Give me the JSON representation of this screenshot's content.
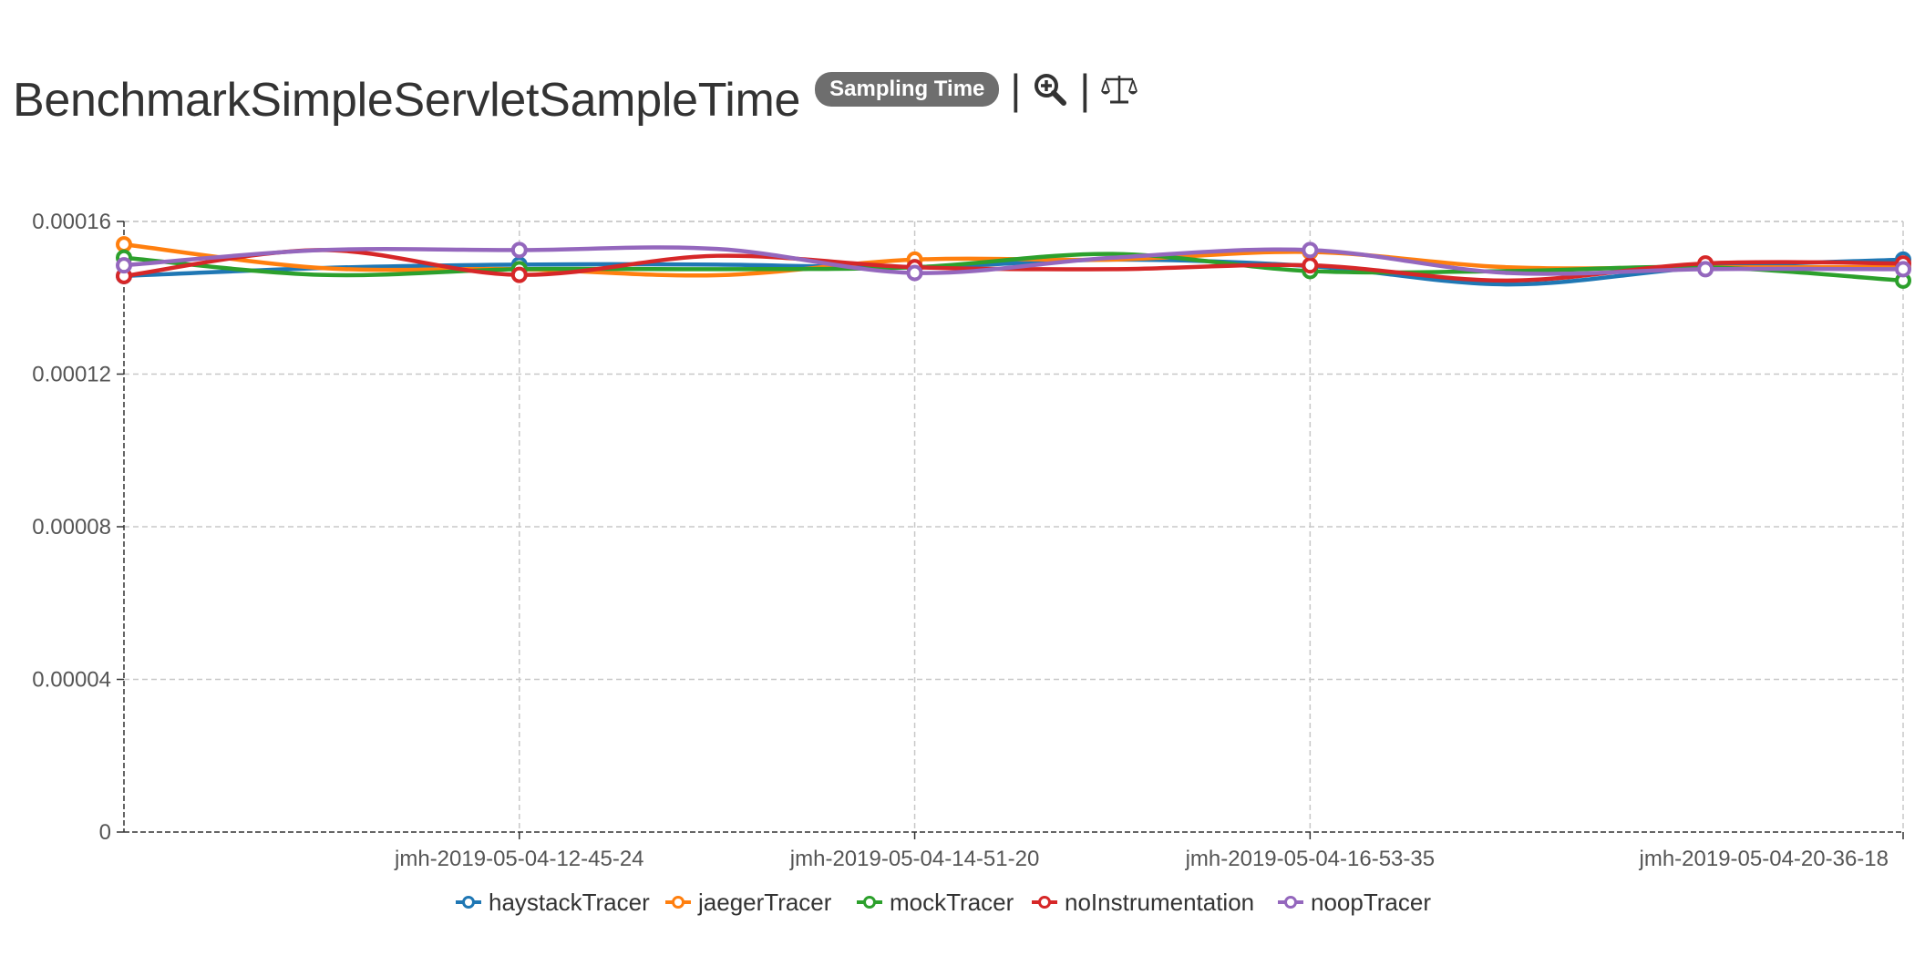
{
  "header": {
    "title": "BenchmarkSimpleServletSampleTime",
    "badge": "Sampling Time",
    "separator": "|"
  },
  "icons": {
    "zoom": "zoom-in-icon",
    "scale": "balance-scale-icon"
  },
  "colors": {
    "haystackTracer": "#1f77b4",
    "jaegerTracer": "#ff7f0e",
    "mockTracer": "#2ca02c",
    "noInstrumentation": "#d62728",
    "noopTracer": "#9467bd"
  },
  "chart_data": {
    "type": "line",
    "title": "",
    "xlabel": "",
    "ylabel": "",
    "ylim": [
      0,
      0.00016
    ],
    "yticks": [
      "0",
      "0.00004",
      "0.00008",
      "0.00012",
      "0.00016"
    ],
    "grid": true,
    "legend_position": "bottom",
    "x_tick_labels": [
      {
        "index": 2,
        "label": "jmh-2019-05-04-12-45-24"
      },
      {
        "index": 4,
        "label": "jmh-2019-05-04-14-51-20"
      },
      {
        "index": 6,
        "label": "jmh-2019-05-04-16-53-35"
      },
      {
        "index": 8.5,
        "label": "jmh-2019-05-04-20-36-18"
      }
    ],
    "x_count": 10,
    "series": [
      {
        "name": "haystackTracer",
        "values": [
          0.0001457,
          0.0001478,
          0.0001487,
          0.0001487,
          0.000148,
          0.00015,
          0.0001483,
          0.0001435,
          0.000148,
          0.00015
        ]
      },
      {
        "name": "jaegerTracer",
        "values": [
          0.000154,
          0.0001478,
          0.0001475,
          0.0001459,
          0.00015,
          0.00015,
          0.000152,
          0.000148,
          0.000148,
          0.000148
        ]
      },
      {
        "name": "mockTracer",
        "values": [
          0.0001505,
          0.000146,
          0.0001475,
          0.0001475,
          0.000148,
          0.0001515,
          0.000147,
          0.000147,
          0.000148,
          0.0001445
        ]
      },
      {
        "name": "noInstrumentation",
        "values": [
          0.0001457,
          0.0001525,
          0.000146,
          0.000151,
          0.000148,
          0.0001475,
          0.0001485,
          0.0001445,
          0.000149,
          0.000149
        ]
      },
      {
        "name": "noopTracer",
        "values": [
          0.0001485,
          0.0001525,
          0.0001525,
          0.0001528,
          0.0001465,
          0.0001505,
          0.0001525,
          0.0001465,
          0.0001475,
          0.0001475
        ]
      }
    ]
  }
}
